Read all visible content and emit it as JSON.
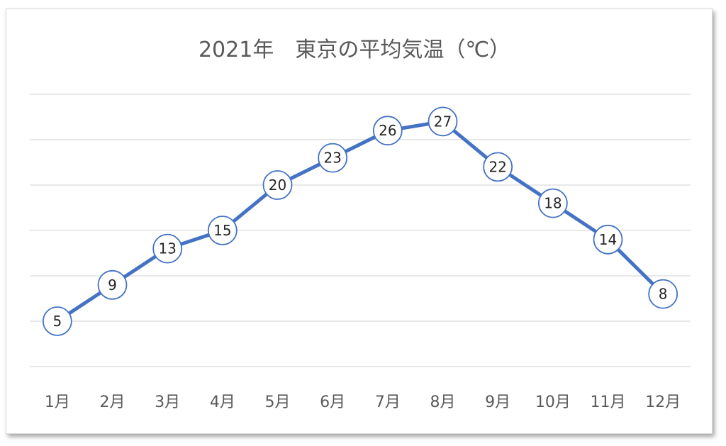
{
  "chart_data": {
    "type": "line",
    "title": "2021年　東京の平均気温（℃）",
    "xlabel": "",
    "ylabel": "",
    "categories": [
      "1月",
      "2月",
      "3月",
      "4月",
      "5月",
      "6月",
      "7月",
      "8月",
      "9月",
      "10月",
      "11月",
      "12月"
    ],
    "series": [
      {
        "values": [
          5,
          9,
          13,
          15,
          20,
          23,
          26,
          27,
          22,
          18,
          14,
          8
        ],
        "color": "#4472C4"
      }
    ],
    "ylim": [
      0,
      30
    ],
    "grid": true,
    "data_labels": true,
    "legend": "none"
  },
  "colors": {
    "line": "#4472C4",
    "marker_fill": "#ffffff",
    "gridline": "#d9d9d9",
    "text": "#595959"
  }
}
